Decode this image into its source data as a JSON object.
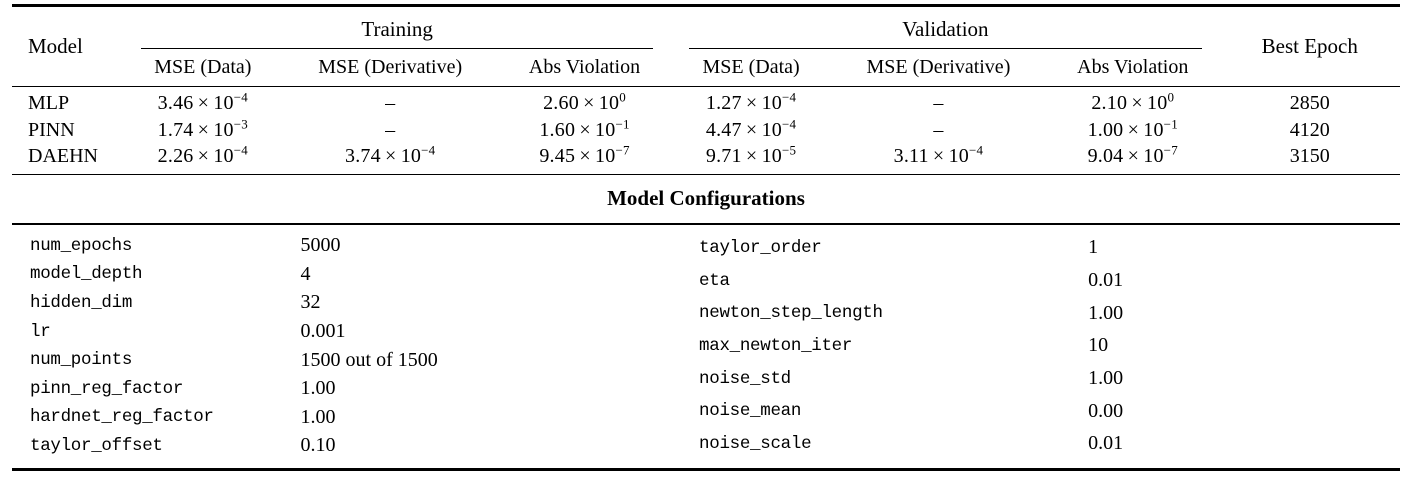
{
  "results_table": {
    "col_model": "Model",
    "group_training": "Training",
    "group_validation": "Validation",
    "col_best_epoch": "Best Epoch",
    "subheaders": [
      "MSE (Data)",
      "MSE (Derivative)",
      "Abs Violation",
      "MSE (Data)",
      "MSE (Derivative)",
      "Abs Violation"
    ],
    "dash": "–",
    "rows": [
      {
        "model": "MLP",
        "values": [
          {
            "m": "3.46",
            "e": "-4"
          },
          null,
          {
            "m": "2.60",
            "e": "0"
          },
          {
            "m": "1.27",
            "e": "-4"
          },
          null,
          {
            "m": "2.10",
            "e": "0"
          }
        ],
        "best_epoch": "2850"
      },
      {
        "model": "PINN",
        "values": [
          {
            "m": "1.74",
            "e": "-3"
          },
          null,
          {
            "m": "1.60",
            "e": "-1"
          },
          {
            "m": "4.47",
            "e": "-4"
          },
          null,
          {
            "m": "1.00",
            "e": "-1"
          }
        ],
        "best_epoch": "4120"
      },
      {
        "model": "DAEHN",
        "values": [
          {
            "m": "2.26",
            "e": "-4"
          },
          {
            "m": "3.74",
            "e": "-4"
          },
          {
            "m": "9.45",
            "e": "-7"
          },
          {
            "m": "9.71",
            "e": "-5"
          },
          {
            "m": "3.11",
            "e": "-4"
          },
          {
            "m": "9.04",
            "e": "-7"
          }
        ],
        "best_epoch": "3150"
      }
    ]
  },
  "config_section": {
    "title": "Model Configurations",
    "left": [
      {
        "key": "num_epochs",
        "value": "5000"
      },
      {
        "key": "model_depth",
        "value": "4"
      },
      {
        "key": "hidden_dim",
        "value": "32"
      },
      {
        "key": "lr",
        "value": "0.001"
      },
      {
        "key": "num_points",
        "value": "1500 out of 1500"
      },
      {
        "key": "pinn_reg_factor",
        "value": "1.00"
      },
      {
        "key": "hardnet_reg_factor",
        "value": "1.00"
      },
      {
        "key": "taylor_offset",
        "value": "0.10"
      }
    ],
    "right": [
      {
        "key": "taylor_order",
        "value": "1"
      },
      {
        "key": "eta",
        "value": "0.01"
      },
      {
        "key": "newton_step_length",
        "value": "1.00"
      },
      {
        "key": "max_newton_iter",
        "value": "10"
      },
      {
        "key": "noise_std",
        "value": "1.00"
      },
      {
        "key": "noise_mean",
        "value": "0.00"
      },
      {
        "key": "noise_scale",
        "value": "0.01"
      }
    ]
  }
}
